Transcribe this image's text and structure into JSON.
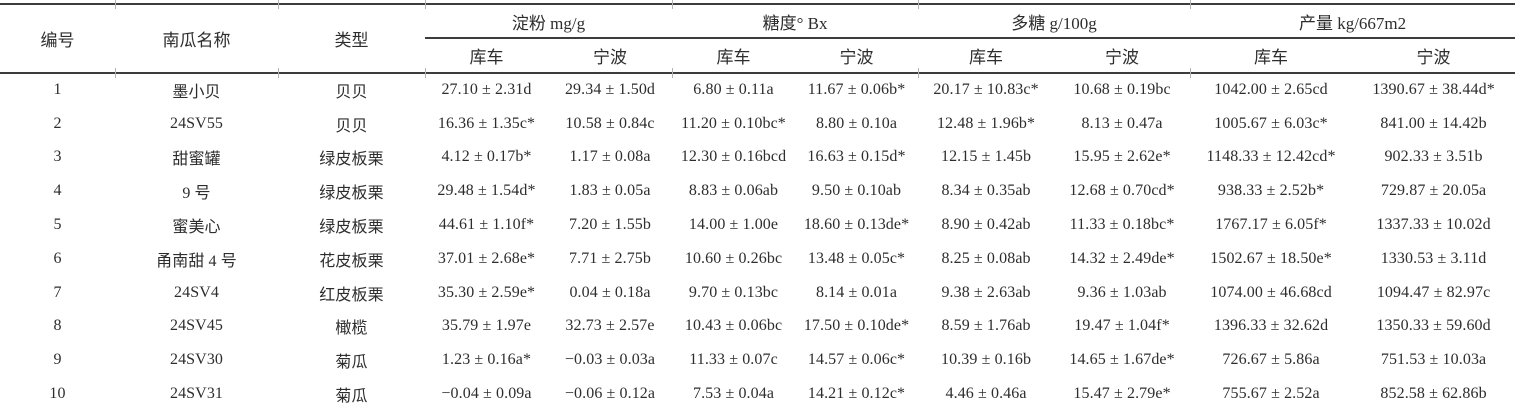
{
  "table": {
    "columns": {
      "no": "编号",
      "name": "南瓜名称",
      "type": "类型"
    },
    "groups": [
      {
        "label": "淀粉 mg/g",
        "subs": [
          "库车",
          "宁波"
        ]
      },
      {
        "label": "糖度° Bx",
        "subs": [
          "库车",
          "宁波"
        ]
      },
      {
        "label": "多糖 g/100g",
        "subs": [
          "库车",
          "宁波"
        ]
      },
      {
        "label": "产量 kg/667m2",
        "subs": [
          "库车",
          "宁波"
        ]
      }
    ],
    "rows": [
      {
        "cells": [
          "1",
          "墨小贝",
          "贝贝",
          "27.10 ± 2.31d",
          "29.34 ± 1.50d",
          "6.80 ± 0.11a",
          "11.67 ± 0.06b*",
          "20.17 ± 10.83c*",
          "10.68 ± 0.19bc",
          "1042.00 ± 2.65cd",
          "1390.67 ± 38.44d*"
        ]
      },
      {
        "cells": [
          "2",
          "24SV55",
          "贝贝",
          "16.36 ± 1.35c*",
          "10.58 ± 0.84c",
          "11.20 ± 0.10bc*",
          "8.80 ± 0.10a",
          "12.48 ± 1.96b*",
          "8.13 ± 0.47a",
          "1005.67 ± 6.03c*",
          "841.00 ± 14.42b"
        ]
      },
      {
        "cells": [
          "3",
          "甜蜜罐",
          "绿皮板栗",
          "4.12 ± 0.17b*",
          "1.17 ± 0.08a",
          "12.30 ± 0.16bcd",
          "16.63 ± 0.15d*",
          "12.15 ± 1.45b",
          "15.95 ± 2.62e*",
          "1148.33 ± 12.42cd*",
          "902.33 ± 3.51b"
        ]
      },
      {
        "cells": [
          "4",
          "9 号",
          "绿皮板栗",
          "29.48 ± 1.54d*",
          "1.83 ± 0.05a",
          "8.83 ± 0.06ab",
          "9.50 ± 0.10ab",
          "8.34 ± 0.35ab",
          "12.68 ± 0.70cd*",
          "938.33 ± 2.52b*",
          "729.87 ± 20.05a"
        ]
      },
      {
        "cells": [
          "5",
          "蜜美心",
          "绿皮板栗",
          "44.61 ± 1.10f*",
          "7.20 ± 1.55b",
          "14.00 ± 1.00e",
          "18.60 ± 0.13de*",
          "8.90 ± 0.42ab",
          "11.33 ± 0.18bc*",
          "1767.17 ± 6.05f*",
          "1337.33 ± 10.02d"
        ]
      },
      {
        "cells": [
          "6",
          "甬南甜 4 号",
          "花皮板栗",
          "37.01 ± 2.68e*",
          "7.71 ± 2.75b",
          "10.60 ± 0.26bc",
          "13.48 ± 0.05c*",
          "8.25 ± 0.08ab",
          "14.32 ± 2.49de*",
          "1502.67 ± 18.50e*",
          "1330.53 ± 3.11d"
        ]
      },
      {
        "cells": [
          "7",
          "24SV4",
          "红皮板栗",
          "35.30 ± 2.59e*",
          "0.04 ± 0.18a",
          "9.70 ± 0.13bc",
          "8.14 ± 0.01a",
          "9.38 ± 2.63ab",
          "9.36 ± 1.03ab",
          "1074.00 ± 46.68cd",
          "1094.47 ± 82.97c"
        ]
      },
      {
        "cells": [
          "8",
          "24SV45",
          "橄榄",
          "35.79 ± 1.97e",
          "32.73 ± 2.57e",
          "10.43 ± 0.06bc",
          "17.50 ± 0.10de*",
          "8.59 ± 1.76ab",
          "19.47 ± 1.04f*",
          "1396.33 ± 32.62d",
          "1350.33 ± 59.60d"
        ]
      },
      {
        "cells": [
          "9",
          "24SV30",
          "菊瓜",
          "1.23 ± 0.16a*",
          "−0.03 ± 0.03a",
          "11.33 ± 0.07c",
          "14.57 ± 0.06c*",
          "10.39 ± 0.16b",
          "14.65 ± 1.67de*",
          "726.67 ± 5.86a",
          "751.53 ± 10.03a"
        ]
      },
      {
        "cells": [
          "10",
          "24SV31",
          "菊瓜",
          "−0.04 ± 0.09a",
          "−0.06 ± 0.12a",
          "7.53 ± 0.04a",
          "14.21 ± 0.12c*",
          "4.46 ± 0.46a",
          "15.47 ± 2.79e*",
          "755.67 ± 2.52a",
          "852.58 ± 62.86b"
        ]
      }
    ]
  },
  "colors": {
    "rule": "#3c3c3c",
    "text": "#2d2d2d",
    "background": "#ffffff"
  }
}
